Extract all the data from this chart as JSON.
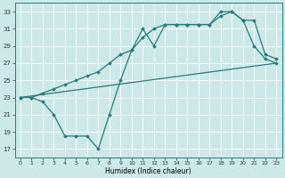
{
  "xlabel": "Humidex (Indice chaleur)",
  "xlim": [
    -0.5,
    23.5
  ],
  "ylim": [
    16,
    34
  ],
  "yticks": [
    17,
    19,
    21,
    23,
    25,
    27,
    29,
    31,
    33
  ],
  "xticks": [
    0,
    1,
    2,
    3,
    4,
    5,
    6,
    7,
    8,
    9,
    10,
    11,
    12,
    13,
    14,
    15,
    16,
    17,
    18,
    19,
    20,
    21,
    22,
    23
  ],
  "bg_color": "#cce8e8",
  "line_color": "#2a7a7a",
  "grid_color": "#ffffff",
  "lines": [
    {
      "x": [
        0,
        1,
        2,
        3,
        4,
        5,
        6,
        7,
        8,
        9,
        10,
        11,
        12,
        13,
        14,
        15,
        16,
        17,
        18,
        19,
        20,
        21,
        22,
        23
      ],
      "y": [
        23,
        23,
        22.5,
        21,
        18.5,
        18.5,
        18.5,
        17,
        21,
        25,
        28.5,
        31,
        29,
        31.5,
        31.5,
        31.5,
        31.5,
        31.5,
        33,
        33,
        32,
        29,
        27.5,
        27
      ]
    },
    {
      "x": [
        0,
        23
      ],
      "y": [
        23,
        27
      ]
    },
    {
      "x": [
        0,
        1,
        2,
        3,
        4,
        5,
        6,
        7,
        8,
        9,
        10,
        11,
        12,
        13,
        14,
        15,
        16,
        17,
        18,
        19,
        20,
        21,
        22,
        23
      ],
      "y": [
        23,
        23,
        23.5,
        24,
        24.5,
        25,
        25.5,
        26,
        27,
        28,
        28.5,
        30,
        31,
        31.5,
        31.5,
        31.5,
        31.5,
        31.5,
        32.5,
        33,
        32,
        32,
        28,
        27.5
      ]
    }
  ]
}
